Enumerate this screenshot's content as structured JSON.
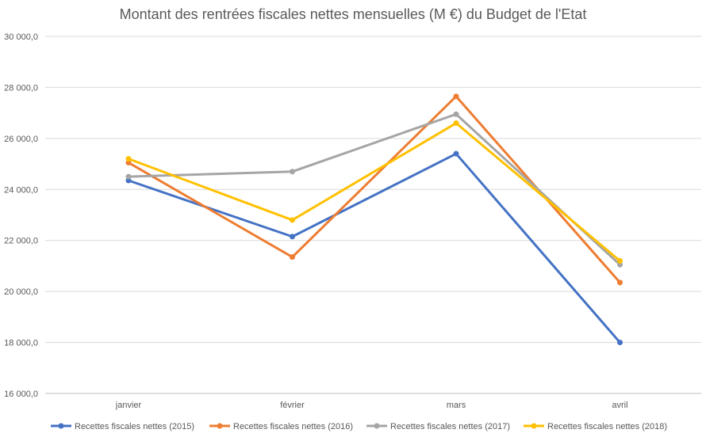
{
  "chart_data": {
    "type": "line",
    "title": "Montant des rentrées fiscales nettes mensuelles (M €) du Budget de l'Etat",
    "xlabel": "",
    "ylabel": "",
    "categories": [
      "janvier",
      "février",
      "mars",
      "avril"
    ],
    "ylim": [
      16000,
      30000
    ],
    "yticks": [
      16000,
      18000,
      20000,
      22000,
      24000,
      26000,
      28000,
      30000
    ],
    "ytick_labels": [
      "16 000,0",
      "18 000,0",
      "20 000,0",
      "22 000,0",
      "24 000,0",
      "26 000,0",
      "28 000,0",
      "30 000,0"
    ],
    "grid": true,
    "legend_position": "bottom",
    "series": [
      {
        "name": "Recettes fiscales nettes (2015)",
        "color": "#4472C4",
        "values": [
          24350,
          22150,
          25400,
          18000
        ]
      },
      {
        "name": "Recettes fiscales nettes (2016)",
        "color": "#ED7D31",
        "values": [
          25050,
          21350,
          27650,
          20350
        ]
      },
      {
        "name": "Recettes fiscales nettes (2017)",
        "color": "#A5A5A5",
        "values": [
          24500,
          24700,
          26950,
          21050
        ]
      },
      {
        "name": "Recettes fiscales nettes (2018)",
        "color": "#FFC000",
        "values": [
          25200,
          22800,
          26600,
          21200
        ]
      }
    ]
  }
}
